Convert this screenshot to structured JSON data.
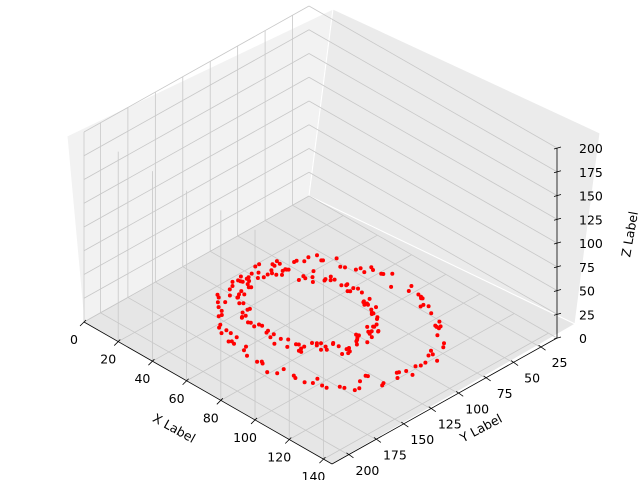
{
  "chart_data": {
    "type": "scatter3d",
    "xlabel": "X Label",
    "ylabel": "Y Label",
    "zlabel": "Z Label",
    "x_ticks": [
      0,
      20,
      40,
      60,
      80,
      100,
      120,
      140
    ],
    "y_ticks": [
      25,
      50,
      75,
      100,
      125,
      150,
      175,
      200
    ],
    "z_ticks": [
      0,
      25,
      50,
      75,
      100,
      125,
      150,
      175,
      200
    ],
    "xlim": [
      0,
      145
    ],
    "ylim": [
      10,
      215
    ],
    "zlim": [
      0,
      200
    ],
    "grid": true,
    "point_color": "#ff0000",
    "series": [
      {
        "shape": "ring",
        "center": [
          70,
          110
        ],
        "z": 10,
        "radius_x": 55,
        "radius_y": 70,
        "n_points": 220
      }
    ]
  }
}
